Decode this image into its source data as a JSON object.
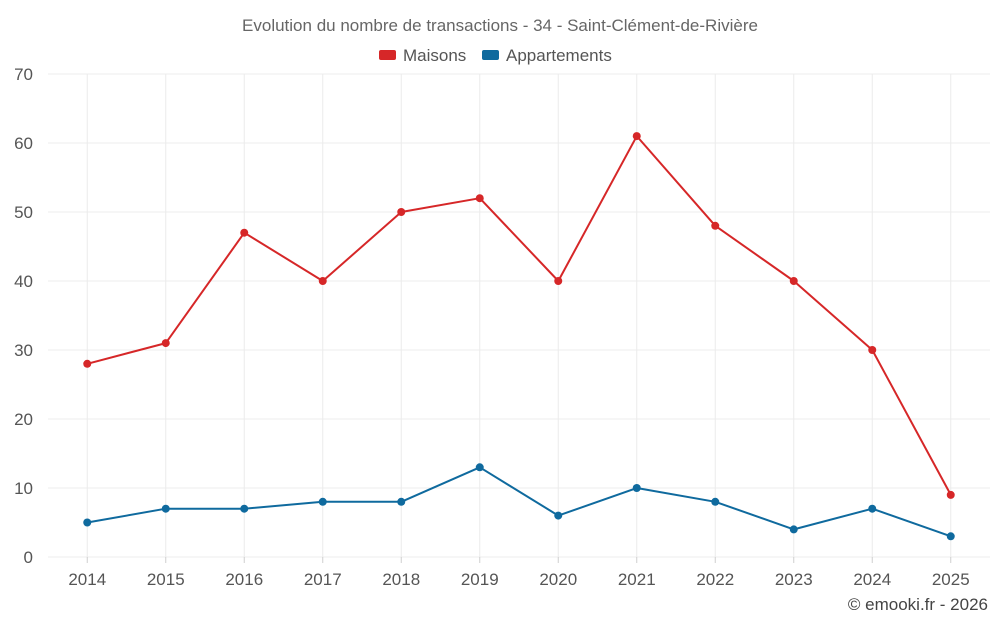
{
  "chart_data": {
    "type": "line",
    "title": "Evolution du nombre de transactions - 34 - Saint-Clément-de-Rivière",
    "categories": [
      "2014",
      "2015",
      "2016",
      "2017",
      "2018",
      "2019",
      "2020",
      "2021",
      "2022",
      "2023",
      "2024",
      "2025"
    ],
    "series": [
      {
        "name": "Maisons",
        "color": "#d62728",
        "values": [
          28,
          31,
          47,
          40,
          50,
          52,
          40,
          61,
          48,
          40,
          30,
          9
        ]
      },
      {
        "name": "Appartements",
        "color": "#0f6a9e",
        "values": [
          5,
          7,
          7,
          8,
          8,
          13,
          6,
          10,
          8,
          4,
          7,
          3
        ]
      }
    ],
    "ylim": [
      0,
      70
    ],
    "yticks": [
      0,
      10,
      20,
      30,
      40,
      50,
      60,
      70
    ],
    "xlabel": "",
    "ylabel": "",
    "grid": true,
    "legend_position": "top-center"
  },
  "credit": "© emooki.fr - 2026"
}
